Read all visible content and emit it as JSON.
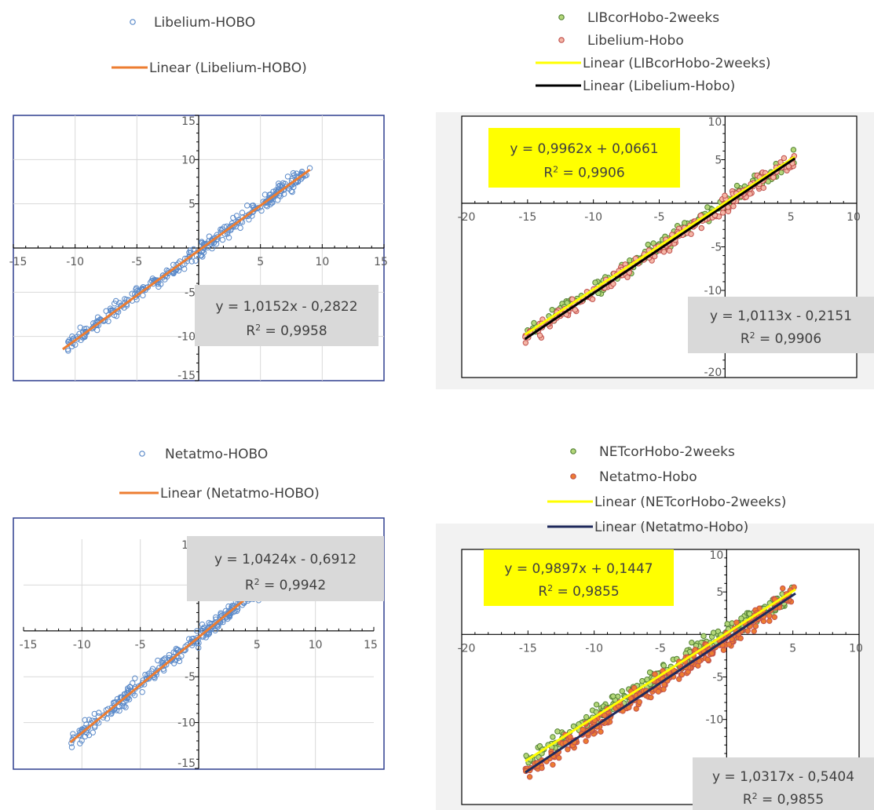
{
  "chart_data": [
    {
      "type": "scatter",
      "title": "",
      "xlim": [
        -15,
        15
      ],
      "ylim": [
        -15,
        15
      ],
      "xticks": [
        -15,
        -10,
        -5,
        0,
        5,
        10,
        15
      ],
      "yticks": [
        -15,
        -10,
        -5,
        0,
        5,
        10,
        15
      ],
      "legend": "top",
      "grid": true,
      "series": [
        {
          "name": "Libelium-HOBO",
          "kind": "points",
          "color": "#5b8ac9",
          "fill": "none",
          "x_range": [
            -11,
            9
          ],
          "slope": 1.0152,
          "intercept": -0.2822,
          "count": 320,
          "spread": 0.5
        }
      ],
      "trendlines": [
        {
          "name": "Linear (Libelium-HOBO)",
          "color": "#ed7d31",
          "slope": 1.0152,
          "intercept": -0.2822,
          "x_range": [
            -11,
            9
          ]
        }
      ],
      "annotations": [
        {
          "line1": "y = 1,0152x - 0,2822",
          "r2_label": "R",
          "r2_exp": "2",
          "r2_value": " = 0,9958",
          "bg": "#d9d9d9"
        }
      ]
    },
    {
      "type": "scatter",
      "title": "",
      "xlim": [
        -20,
        10
      ],
      "ylim": [
        -20,
        10
      ],
      "xticks": [
        -20,
        -15,
        -10,
        -5,
        0,
        5,
        10
      ],
      "yticks": [
        -20,
        -15,
        -10,
        -5,
        0,
        5,
        10
      ],
      "legend": "top",
      "grid": false,
      "series": [
        {
          "name": "LIBcorHobo-2weeks",
          "kind": "points",
          "color": "#548235",
          "fill": "#b4d77a",
          "x_range": [
            -15.2,
            5.3
          ],
          "slope": 0.9962,
          "intercept": 0.0661,
          "count": 220,
          "spread": 0.5
        },
        {
          "name": "Libelium-Hobo",
          "kind": "points",
          "color": "#c0504d",
          "fill": "#f4b6a6",
          "x_range": [
            -15.2,
            5.3
          ],
          "slope": 1.0113,
          "intercept": -0.2151,
          "count": 220,
          "spread": 0.55
        }
      ],
      "trendlines": [
        {
          "name": "Linear (LIBcorHobo-2weeks)",
          "color": "#ffff00",
          "slope": 0.9962,
          "intercept": 0.0661,
          "x_range": [
            -15.2,
            5.3
          ]
        },
        {
          "name": "Linear (Libelium-Hobo)",
          "color": "#000000",
          "slope": 1.0113,
          "intercept": -0.2151,
          "x_range": [
            -15.2,
            5.3
          ]
        }
      ],
      "annotations": [
        {
          "line1": "y = 0,9962x + 0,0661",
          "r2_label": "R",
          "r2_exp": "2",
          "r2_value": " = 0,9906",
          "bg": "#ffff00"
        },
        {
          "line1": "y = 1,0113x - 0,2151",
          "r2_label": "R",
          "r2_exp": "2",
          "r2_value": " = 0,9906",
          "bg": "#d9d9d9"
        }
      ]
    },
    {
      "type": "scatter",
      "title": "",
      "xlim": [
        -15,
        15
      ],
      "ylim": [
        -15,
        10
      ],
      "xticks": [
        -15,
        -10,
        -5,
        0,
        5,
        10,
        15
      ],
      "yticks": [
        -15,
        -10,
        -5,
        0,
        5,
        10
      ],
      "legend": "top",
      "grid": true,
      "series": [
        {
          "name": "Netatmo-HOBO",
          "kind": "points",
          "color": "#5b8ac9",
          "fill": "none",
          "x_range": [
            -11,
            9
          ],
          "slope": 1.0424,
          "intercept": -0.6912,
          "count": 360,
          "spread": 0.6
        }
      ],
      "trendlines": [
        {
          "name": "Linear (Netatmo-HOBO)",
          "color": "#ed7d31",
          "slope": 1.0424,
          "intercept": -0.6912,
          "x_range": [
            -11,
            9
          ]
        }
      ],
      "annotations": [
        {
          "line1": "y = 1,0424x - 0,6912",
          "r2_label": "R",
          "r2_exp": "2",
          "r2_value": " = 0,9942",
          "bg": "#d9d9d9"
        }
      ]
    },
    {
      "type": "scatter",
      "title": "",
      "xlim": [
        -20,
        10
      ],
      "ylim": [
        -20,
        10
      ],
      "xticks": [
        -20,
        -15,
        -10,
        -5,
        0,
        5,
        10
      ],
      "yticks": [
        -20,
        -15,
        -10,
        -5,
        0,
        5,
        10
      ],
      "legend": "top",
      "grid": false,
      "series": [
        {
          "name": "NETcorHobo-2weeks",
          "kind": "points",
          "color": "#548235",
          "fill": "#b4d77a",
          "x_range": [
            -15.2,
            5.2
          ],
          "slope": 0.9897,
          "intercept": 0.1447,
          "count": 260,
          "spread": 0.7
        },
        {
          "name": "Netatmo-Hobo",
          "kind": "points",
          "color": "#c0504d",
          "fill": "#ed7d31",
          "x_range": [
            -15.2,
            5.2
          ],
          "slope": 1.0317,
          "intercept": -0.5404,
          "count": 260,
          "spread": 0.75
        }
      ],
      "trendlines": [
        {
          "name": "Linear (NETcorHobo-2weeks)",
          "color": "#ffff00",
          "slope": 0.9897,
          "intercept": 0.1447,
          "x_range": [
            -15.2,
            5.2
          ]
        },
        {
          "name": "Linear (Netatmo-Hobo)",
          "color": "#1f2a5c",
          "slope": 1.0317,
          "intercept": -0.5404,
          "x_range": [
            -15.2,
            5.2
          ]
        }
      ],
      "annotations": [
        {
          "line1": "y = 0,9897x + 0,1447",
          "r2_label": "R",
          "r2_exp": "2",
          "r2_value": " = 0,9855",
          "bg": "#ffff00"
        },
        {
          "line1": "y = 1,0317x - 0,5404",
          "r2_label": "R",
          "r2_exp": "2",
          "r2_value": " = 0,9855",
          "bg": "#d9d9d9"
        }
      ]
    }
  ]
}
